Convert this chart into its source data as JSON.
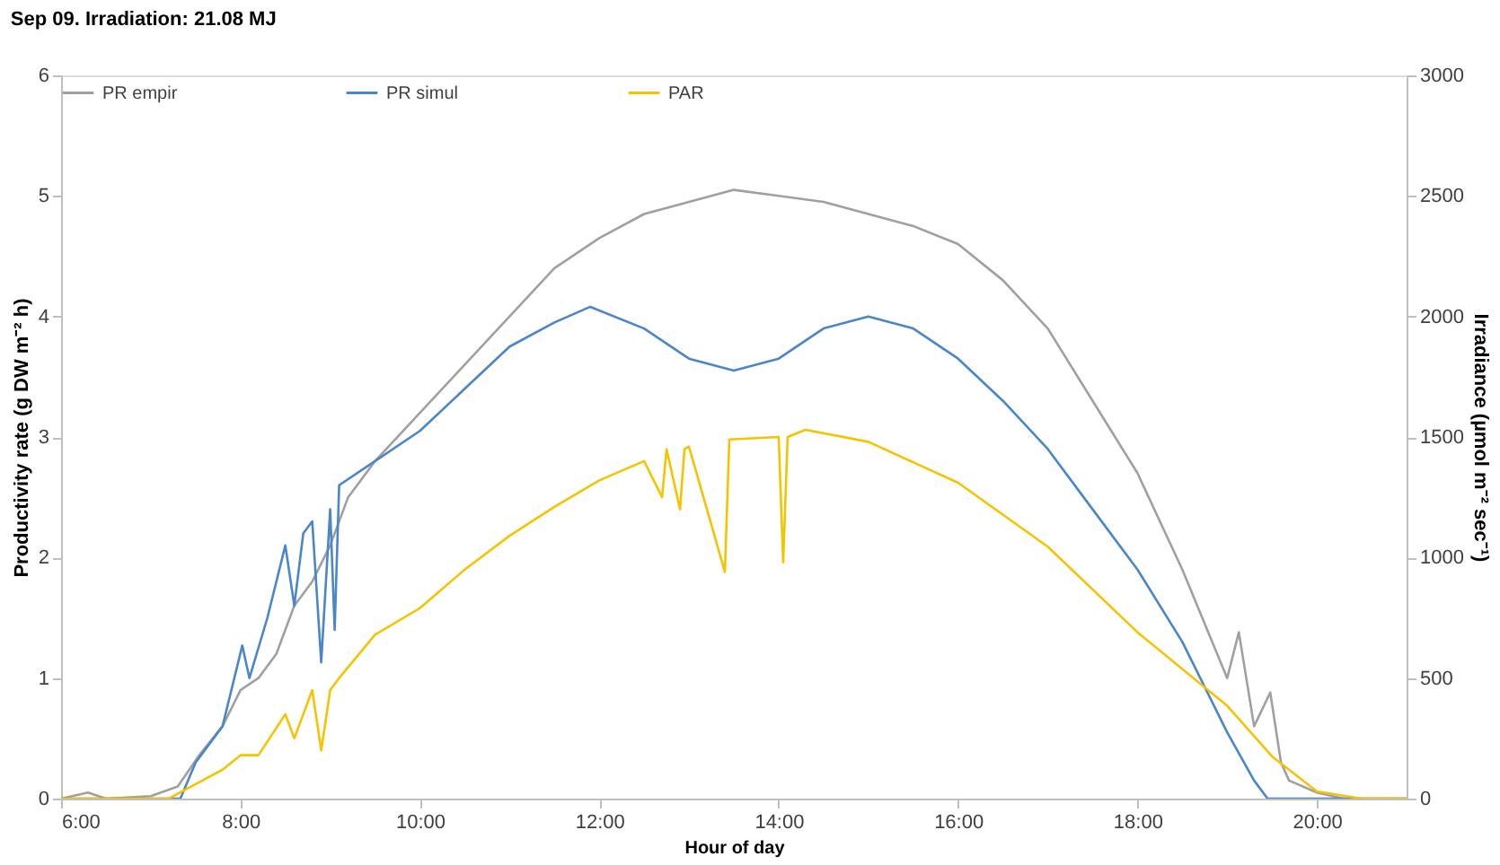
{
  "chart_data": {
    "type": "line",
    "title": "Sep  09.    Irradiation:  21.08 MJ",
    "xlabel": "Hour of day",
    "ylabel": "Productivity rate  (g DW m⁻² h)",
    "y2label": "Irradiance (µmol m⁻² sec⁻¹)",
    "xlim": [
      6,
      21
    ],
    "xticks": [
      {
        "value": 6,
        "label": "6:00"
      },
      {
        "value": 8,
        "label": "8:00"
      },
      {
        "value": 10,
        "label": "10:00"
      },
      {
        "value": 12,
        "label": "12:00"
      },
      {
        "value": 14,
        "label": "14:00"
      },
      {
        "value": 16,
        "label": "16:00"
      },
      {
        "value": 18,
        "label": "18:00"
      },
      {
        "value": 20,
        "label": "20:00"
      }
    ],
    "ylim": [
      0,
      6
    ],
    "yticks": [
      0,
      1,
      2,
      3,
      4,
      5,
      6
    ],
    "y2lim": [
      0,
      3000
    ],
    "y2ticks": [
      0,
      500,
      1000,
      1500,
      2000,
      2500,
      3000
    ],
    "grid": false,
    "legend": "top",
    "line_style": "solid",
    "marker": "none",
    "series": [
      {
        "name": "PR empir",
        "color": "#a0a0a4",
        "x": [
          6,
          6.3,
          6.5,
          7,
          7.3,
          7.54,
          7.8,
          8,
          8.2,
          8.4,
          8.6,
          8.8,
          9,
          9.2,
          9.5,
          10,
          10.5,
          11,
          11.5,
          12,
          12.5,
          13,
          13.5,
          14,
          14.5,
          15,
          15.5,
          16,
          16.5,
          17,
          17.5,
          18,
          18.5,
          19,
          19.13,
          19.3,
          19.48,
          19.6,
          19.69,
          20,
          20.3,
          21
        ],
        "values": [
          0,
          0.05,
          0,
          0.02,
          0.1,
          0.36,
          0.6,
          0.9,
          1.0,
          1.2,
          1.6,
          1.8,
          2.1,
          2.5,
          2.8,
          3.2,
          3.6,
          4.0,
          4.4,
          4.65,
          4.85,
          4.95,
          5.05,
          5.0,
          4.95,
          4.85,
          4.75,
          4.6,
          4.3,
          3.9,
          3.3,
          2.7,
          1.9,
          1.0,
          1.38,
          0.6,
          0.88,
          0.3,
          0.15,
          0.05,
          0,
          0
        ]
      },
      {
        "name": "PR simul",
        "color": "#4a86c8",
        "x": [
          6,
          7.33,
          7.5,
          7.8,
          8.02,
          8.1,
          8.3,
          8.5,
          8.6,
          8.7,
          8.8,
          8.9,
          9.0,
          9.05,
          9.1,
          9.5,
          10,
          10.5,
          11,
          11.5,
          11.9,
          12.5,
          13,
          13.5,
          14,
          14.5,
          15,
          15.5,
          16,
          16.5,
          17,
          17.5,
          18,
          18.5,
          19,
          19.3,
          19.45,
          21
        ],
        "values": [
          0,
          0,
          0.3,
          0.6,
          1.27,
          1.0,
          1.5,
          2.1,
          1.6,
          2.2,
          2.3,
          1.13,
          2.4,
          1.4,
          2.6,
          2.8,
          3.05,
          3.4,
          3.75,
          3.95,
          4.08,
          3.9,
          3.65,
          3.55,
          3.65,
          3.9,
          4.0,
          3.9,
          3.65,
          3.3,
          2.9,
          2.4,
          1.9,
          1.3,
          0.55,
          0.15,
          0,
          0
        ]
      },
      {
        "name": "PAR",
        "color": "#f5c400",
        "axis": "y2",
        "x": [
          6,
          7.2,
          7.5,
          7.8,
          8,
          8.2,
          8.5,
          8.6,
          8.8,
          8.9,
          9,
          9.1,
          9.5,
          10,
          10.5,
          11,
          11.5,
          12,
          12.5,
          12.7,
          12.75,
          12.9,
          12.95,
          13,
          13.4,
          13.45,
          14,
          14.05,
          14.1,
          14.3,
          15,
          16,
          17,
          18,
          19,
          19.5,
          20,
          20.5,
          21
        ],
        "values": [
          0,
          0,
          60,
          120,
          180,
          180,
          350,
          250,
          450,
          200,
          450,
          500,
          680,
          790,
          950,
          1090,
          1210,
          1320,
          1400,
          1250,
          1450,
          1200,
          1450,
          1460,
          940,
          1490,
          1500,
          980,
          1500,
          1530,
          1480,
          1310,
          1045,
          690,
          385,
          175,
          30,
          0,
          0
        ]
      }
    ]
  }
}
